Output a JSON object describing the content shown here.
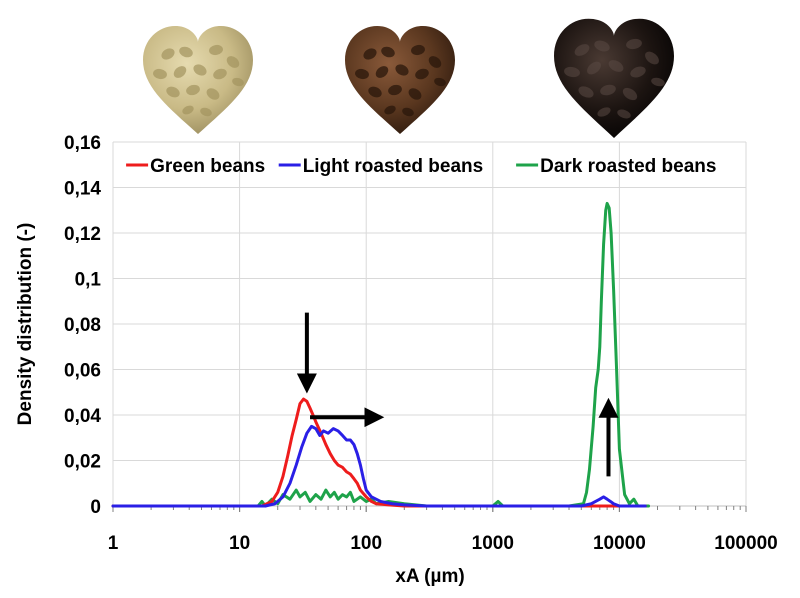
{
  "chart_data": {
    "type": "line",
    "xscale": "log",
    "xlim": [
      1,
      100000
    ],
    "ylim": [
      0,
      0.16
    ],
    "xticks": [
      1,
      10,
      100,
      1000,
      10000,
      100000
    ],
    "xtick_labels": [
      "1",
      "10",
      "100",
      "1000",
      "10000",
      "100000"
    ],
    "yticks": [
      0,
      0.02,
      0.04,
      0.06,
      0.08,
      0.1,
      0.12,
      0.14,
      0.16
    ],
    "ytick_labels": [
      "0",
      "0,02",
      "0,04",
      "0,06",
      "0,08",
      "0,1",
      "0,12",
      "0,14",
      "0,16"
    ],
    "xlabel": "xA (µm)",
    "ylabel": "Density distribution (-)",
    "grid": true,
    "legend_position": "top",
    "series": [
      {
        "name": "Green beans",
        "color": "#ee1c1c",
        "x": [
          1,
          15,
          18,
          20,
          22,
          24,
          26,
          28,
          30,
          32,
          34,
          36,
          38,
          40,
          44,
          48,
          52,
          56,
          60,
          65,
          70,
          75,
          80,
          85,
          90,
          100,
          110,
          120,
          150,
          200,
          300,
          16000
        ],
        "y": [
          0,
          0,
          0.002,
          0.006,
          0.013,
          0.022,
          0.031,
          0.038,
          0.045,
          0.047,
          0.046,
          0.043,
          0.04,
          0.037,
          0.032,
          0.027,
          0.023,
          0.02,
          0.018,
          0.017,
          0.015,
          0.014,
          0.012,
          0.01,
          0.007,
          0.004,
          0.002,
          0.001,
          0.0005,
          0,
          0,
          0
        ]
      },
      {
        "name": "Light roasted beans",
        "color": "#2a1fe6",
        "x": [
          1,
          16,
          19,
          22,
          25,
          28,
          31,
          34,
          37,
          40,
          43,
          46,
          50,
          55,
          60,
          65,
          70,
          75,
          80,
          85,
          90,
          95,
          100,
          110,
          130,
          160,
          200,
          300,
          500,
          5000,
          6000,
          7000,
          7500,
          8000,
          8500,
          9000,
          10000,
          16000
        ],
        "y": [
          0,
          0,
          0.001,
          0.004,
          0.01,
          0.018,
          0.026,
          0.032,
          0.035,
          0.034,
          0.031,
          0.033,
          0.032,
          0.034,
          0.033,
          0.031,
          0.029,
          0.029,
          0.027,
          0.023,
          0.018,
          0.012,
          0.007,
          0.004,
          0.002,
          0.001,
          0.0005,
          0,
          0,
          0,
          0.001,
          0.003,
          0.004,
          0.003,
          0.002,
          0.001,
          0,
          0
        ]
      },
      {
        "name": "Dark roasted beans",
        "color": "#1ea34a",
        "x": [
          1,
          14,
          15,
          16,
          18,
          20,
          22,
          25,
          28,
          30,
          33,
          36,
          40,
          44,
          48,
          52,
          56,
          60,
          65,
          70,
          75,
          80,
          90,
          100,
          110,
          120,
          150,
          200,
          300,
          1000,
          1100,
          1200,
          3000,
          4000,
          5200,
          5500,
          5800,
          6200,
          6500,
          6800,
          7000,
          7200,
          7500,
          7800,
          8000,
          8300,
          8600,
          9000,
          9500,
          10000,
          11000,
          12000,
          13000,
          14000,
          16000,
          17000
        ],
        "y": [
          0,
          0,
          0.002,
          0,
          0.003,
          0.001,
          0.005,
          0.003,
          0.007,
          0.004,
          0.006,
          0.002,
          0.005,
          0.003,
          0.007,
          0.004,
          0.006,
          0.003,
          0.005,
          0.004,
          0.006,
          0.002,
          0.004,
          0.002,
          0.003,
          0.001,
          0.002,
          0.001,
          0,
          0,
          0.002,
          0,
          0,
          0,
          0.001,
          0.006,
          0.016,
          0.035,
          0.052,
          0.06,
          0.07,
          0.09,
          0.115,
          0.13,
          0.133,
          0.131,
          0.12,
          0.095,
          0.06,
          0.025,
          0.005,
          0.001,
          0.003,
          0,
          0,
          0
        ]
      }
    ],
    "annotations": [
      {
        "type": "arrow",
        "direction": "down",
        "at_x": 34,
        "from_y": 0.085,
        "to_y": 0.054
      },
      {
        "type": "arrow",
        "direction": "right",
        "at_y": 0.039,
        "from_x": 36,
        "to_x": 115
      },
      {
        "type": "arrow",
        "direction": "up",
        "at_x": 8200,
        "from_y": 0.013,
        "to_y": 0.043
      }
    ],
    "images": [
      {
        "name": "green-beans-heart-image",
        "color": "#cbbd8a"
      },
      {
        "name": "light-roasted-beans-heart-image",
        "color": "#4a2e1c"
      },
      {
        "name": "dark-roasted-beans-heart-image",
        "color": "#16100d"
      }
    ]
  }
}
